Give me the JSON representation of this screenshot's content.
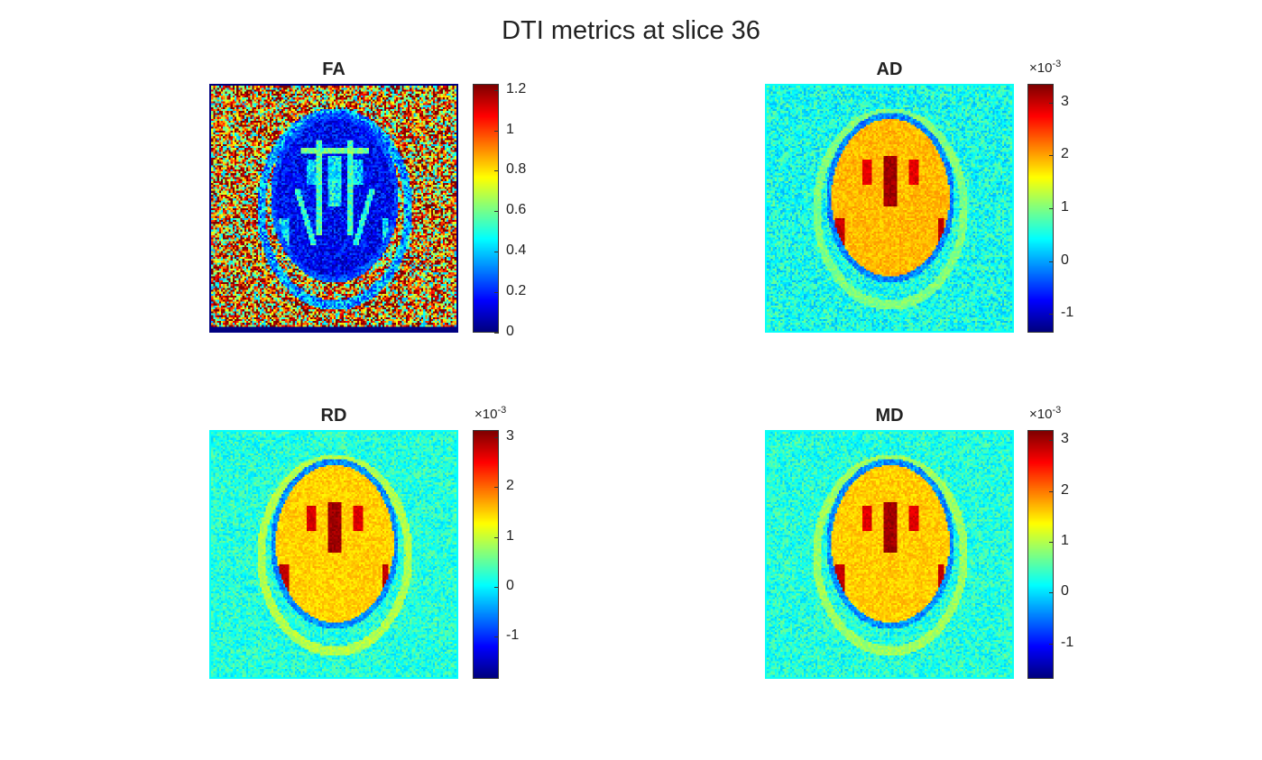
{
  "figure": {
    "title": "DTI metrics at slice 36",
    "colormap": "jet"
  },
  "chart_data": [
    {
      "type": "heatmap",
      "title": "FA",
      "colorbar": {
        "min": 0,
        "max": 1.23,
        "ticks": [
          0,
          0.2,
          0.4,
          0.6,
          0.8,
          1,
          1.2
        ],
        "tick_labels": [
          "0",
          "0.2",
          "0.4",
          "0.6",
          "0.8",
          "1",
          "1.2"
        ],
        "multiplier": ""
      },
      "background_value": 0.9,
      "background_noise": 0.55,
      "brain_value": 0.15,
      "skull_value": 0.35,
      "border_value": 0.0,
      "ventricle_value": 0.45
    },
    {
      "type": "heatmap",
      "title": "AD",
      "colorbar": {
        "min": -1.35,
        "max": 3.35,
        "ticks": [
          -1,
          0,
          1,
          2,
          3
        ],
        "tick_labels": [
          "-1",
          "0",
          "1",
          "2",
          "3"
        ],
        "multiplier": "×10",
        "multiplier_exp": "-3"
      },
      "background_value": 0.5,
      "background_noise": 0.45,
      "brain_value": 1.9,
      "skull_value": 1.0,
      "border_value": 0.45,
      "ventricle_value": 3.2
    },
    {
      "type": "heatmap",
      "title": "RD",
      "colorbar": {
        "min": -1.85,
        "max": 3.15,
        "ticks": [
          -1,
          0,
          1,
          2,
          3
        ],
        "tick_labels": [
          "-1",
          "0",
          "1",
          "2",
          "3"
        ],
        "multiplier": "×10",
        "multiplier_exp": "-3"
      },
      "background_value": 0.2,
      "background_noise": 0.4,
      "brain_value": 1.5,
      "skull_value": 0.9,
      "border_value": 0.05,
      "ventricle_value": 3.0
    },
    {
      "type": "heatmap",
      "title": "MD",
      "colorbar": {
        "min": -1.7,
        "max": 3.2,
        "ticks": [
          -1,
          0,
          1,
          2,
          3
        ],
        "tick_labels": [
          "-1",
          "0",
          "1",
          "2",
          "3"
        ],
        "multiplier": "×10",
        "multiplier_exp": "-3"
      },
      "background_value": 0.3,
      "background_noise": 0.4,
      "brain_value": 1.6,
      "skull_value": 0.9,
      "border_value": 0.2,
      "ventricle_value": 3.05
    }
  ]
}
